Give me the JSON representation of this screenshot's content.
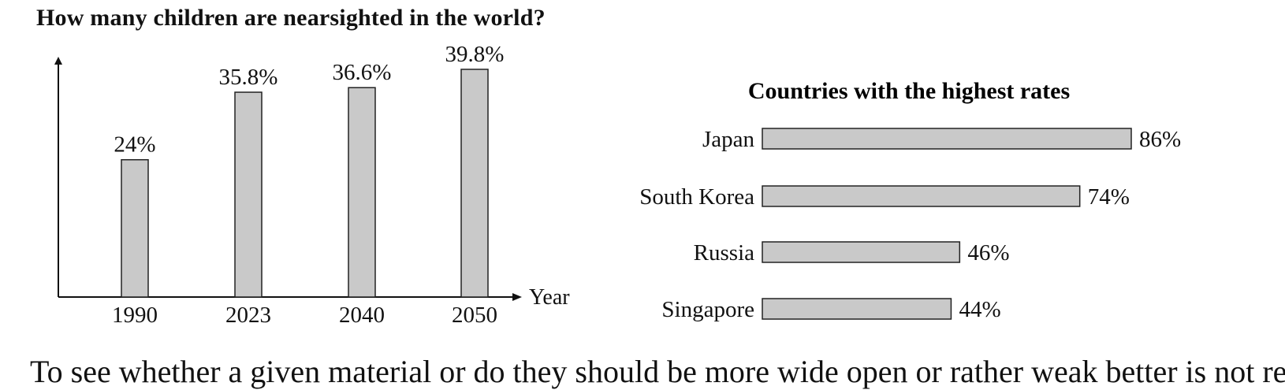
{
  "title": "How many children are nearsighted in the world?",
  "footer_text": "To see whether a given material or do they should be more wide open or rather weak better is not ready",
  "colors": {
    "bar_fill": "#c9c9c9",
    "bar_stroke": "#222222",
    "axis": "#111111",
    "text": "#111111"
  },
  "chart_data": [
    {
      "type": "bar",
      "title": "",
      "xlabel": "Year",
      "ylabel": "",
      "categories": [
        "1990",
        "2023",
        "2040",
        "2050"
      ],
      "values": [
        24,
        35.8,
        36.6,
        39.8
      ],
      "value_labels": [
        "24%",
        "35.8%",
        "36.6%",
        "39.8%"
      ],
      "ylim": [
        0,
        45
      ],
      "grid": false,
      "legend": "none"
    },
    {
      "type": "bar",
      "orientation": "horizontal",
      "title": "Countries with the highest rates",
      "xlabel": "",
      "ylabel": "",
      "categories": [
        "Japan",
        "South Korea",
        "Russia",
        "Singapore"
      ],
      "values": [
        86,
        74,
        46,
        44
      ],
      "value_labels": [
        "86%",
        "74%",
        "46%",
        "44%"
      ],
      "xlim": [
        0,
        86
      ],
      "grid": false,
      "legend": "none"
    }
  ]
}
